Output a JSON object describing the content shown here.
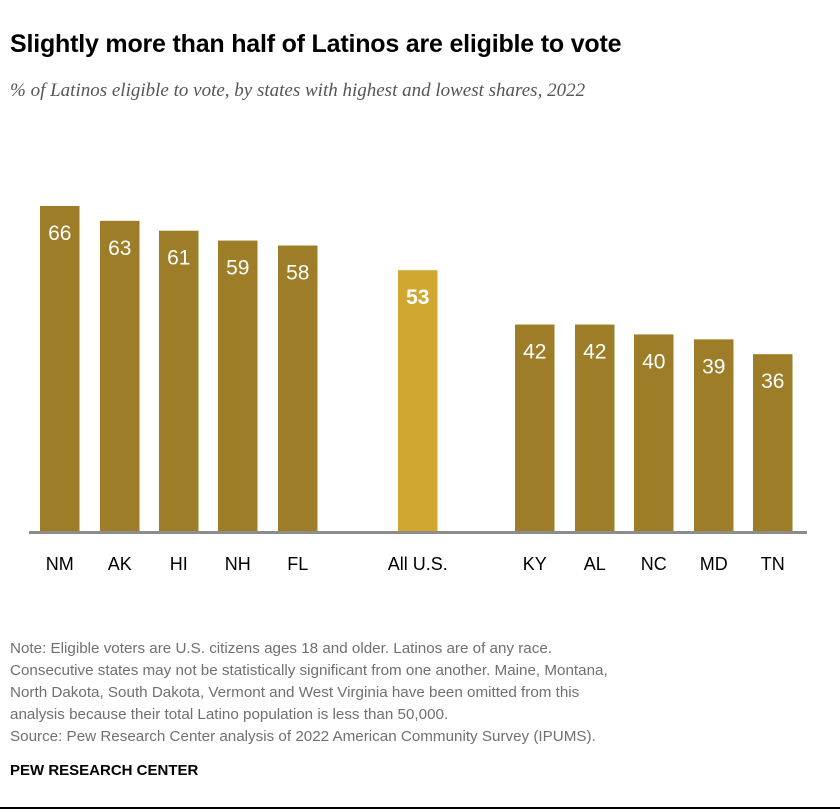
{
  "title": "Slightly more than half of Latinos are eligible to vote",
  "subtitle": "% of Latinos eligible to vote, by states with highest and lowest shares, 2022",
  "notes": [
    "Note: Eligible voters are U.S. citizens ages 18 and older. Latinos are of any race.",
    "Consecutive states may not be statistically significant from one another. Maine, Montana,",
    "North Dakota, South Dakota, Vermont and West Virginia have been omitted from this",
    "analysis because their total Latino population is less than 50,000.",
    "Source: Pew Research Center analysis of 2022 American Community Survey (IPUMS)."
  ],
  "brand": "PEW RESEARCH CENTER",
  "colors": {
    "bar": "#9e7d28",
    "highlight": "#d0a731",
    "axis": "#8c8c8c"
  },
  "chart_data": {
    "type": "bar",
    "categories": [
      "NM",
      "AK",
      "HI",
      "NH",
      "FL",
      "All U.S.",
      "KY",
      "AL",
      "NC",
      "MD",
      "TN"
    ],
    "values": [
      66,
      63,
      61,
      59,
      58,
      53,
      42,
      42,
      40,
      39,
      36
    ],
    "highlighted": [
      "All U.S."
    ],
    "title": "Slightly more than half of Latinos are eligible to vote",
    "xlabel": "",
    "ylabel": "",
    "ylim": [
      0,
      66
    ],
    "grid": false
  }
}
